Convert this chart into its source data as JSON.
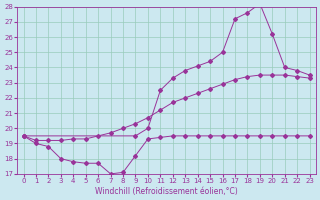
{
  "bg_color": "#cce8f0",
  "grid_color": "#99ccbb",
  "line_color": "#993399",
  "xlabel": "Windchill (Refroidissement éolien,°C)",
  "xlim": [
    -0.5,
    23.5
  ],
  "ylim": [
    17,
    28
  ],
  "yticks": [
    17,
    18,
    19,
    20,
    21,
    22,
    23,
    24,
    25,
    26,
    27,
    28
  ],
  "xticks": [
    0,
    1,
    2,
    3,
    4,
    5,
    6,
    7,
    8,
    9,
    10,
    11,
    12,
    13,
    14,
    15,
    16,
    17,
    18,
    19,
    20,
    21,
    22,
    23
  ],
  "line1_x": [
    0,
    1,
    2,
    3,
    4,
    5,
    6,
    7,
    8,
    9,
    10,
    11,
    12,
    13,
    14,
    15,
    16,
    17,
    18,
    19,
    20,
    21,
    22,
    23
  ],
  "line1_y": [
    19.5,
    19.0,
    18.8,
    18.0,
    17.8,
    17.7,
    17.7,
    17.0,
    17.1,
    18.2,
    19.3,
    19.4,
    19.5,
    19.5,
    19.5,
    19.5,
    19.5,
    19.5,
    19.5,
    19.5,
    19.5,
    19.5,
    19.5,
    19.5
  ],
  "line2_x": [
    0,
    1,
    2,
    3,
    4,
    5,
    6,
    7,
    8,
    9,
    10,
    11,
    12,
    13,
    14,
    15,
    16,
    17,
    18,
    19,
    20,
    21,
    22,
    23
  ],
  "line2_y": [
    19.5,
    19.2,
    19.2,
    19.2,
    19.3,
    19.3,
    19.5,
    19.7,
    20.0,
    20.3,
    20.7,
    21.2,
    21.7,
    22.0,
    22.3,
    22.6,
    22.9,
    23.2,
    23.4,
    23.5,
    23.5,
    23.5,
    23.4,
    23.3
  ],
  "line3_x": [
    0,
    9,
    10,
    11,
    12,
    13,
    14,
    15,
    16,
    17,
    18,
    19,
    20,
    21,
    22,
    23
  ],
  "line3_y": [
    19.5,
    19.5,
    20.0,
    22.5,
    23.3,
    23.8,
    24.1,
    24.4,
    25.0,
    27.2,
    27.6,
    28.2,
    26.2,
    24.0,
    23.8,
    23.5
  ]
}
